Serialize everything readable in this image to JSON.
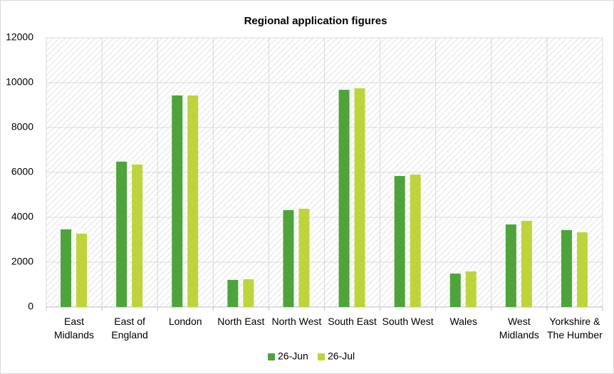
{
  "chart_data": {
    "type": "bar",
    "title": "Regional application figures",
    "categories": [
      "East Midlands",
      "East of England",
      "London",
      "North East",
      "North West",
      "South East",
      "South West",
      "Wales",
      "West Midlands",
      "Yorkshire & The Humber"
    ],
    "series": [
      {
        "name": "26-Jun",
        "color": "#4ea43a",
        "values": [
          3460,
          6480,
          9430,
          1210,
          4320,
          9680,
          5840,
          1490,
          3680,
          3430
        ]
      },
      {
        "name": "26-Jul",
        "color": "#bfd43c",
        "values": [
          3270,
          6350,
          9430,
          1240,
          4380,
          9750,
          5900,
          1590,
          3840,
          3330
        ]
      }
    ],
    "ylim": [
      0,
      12000
    ],
    "yticks": [
      0,
      2000,
      4000,
      6000,
      8000,
      10000,
      12000
    ],
    "grid": true,
    "legend": "bottom"
  }
}
